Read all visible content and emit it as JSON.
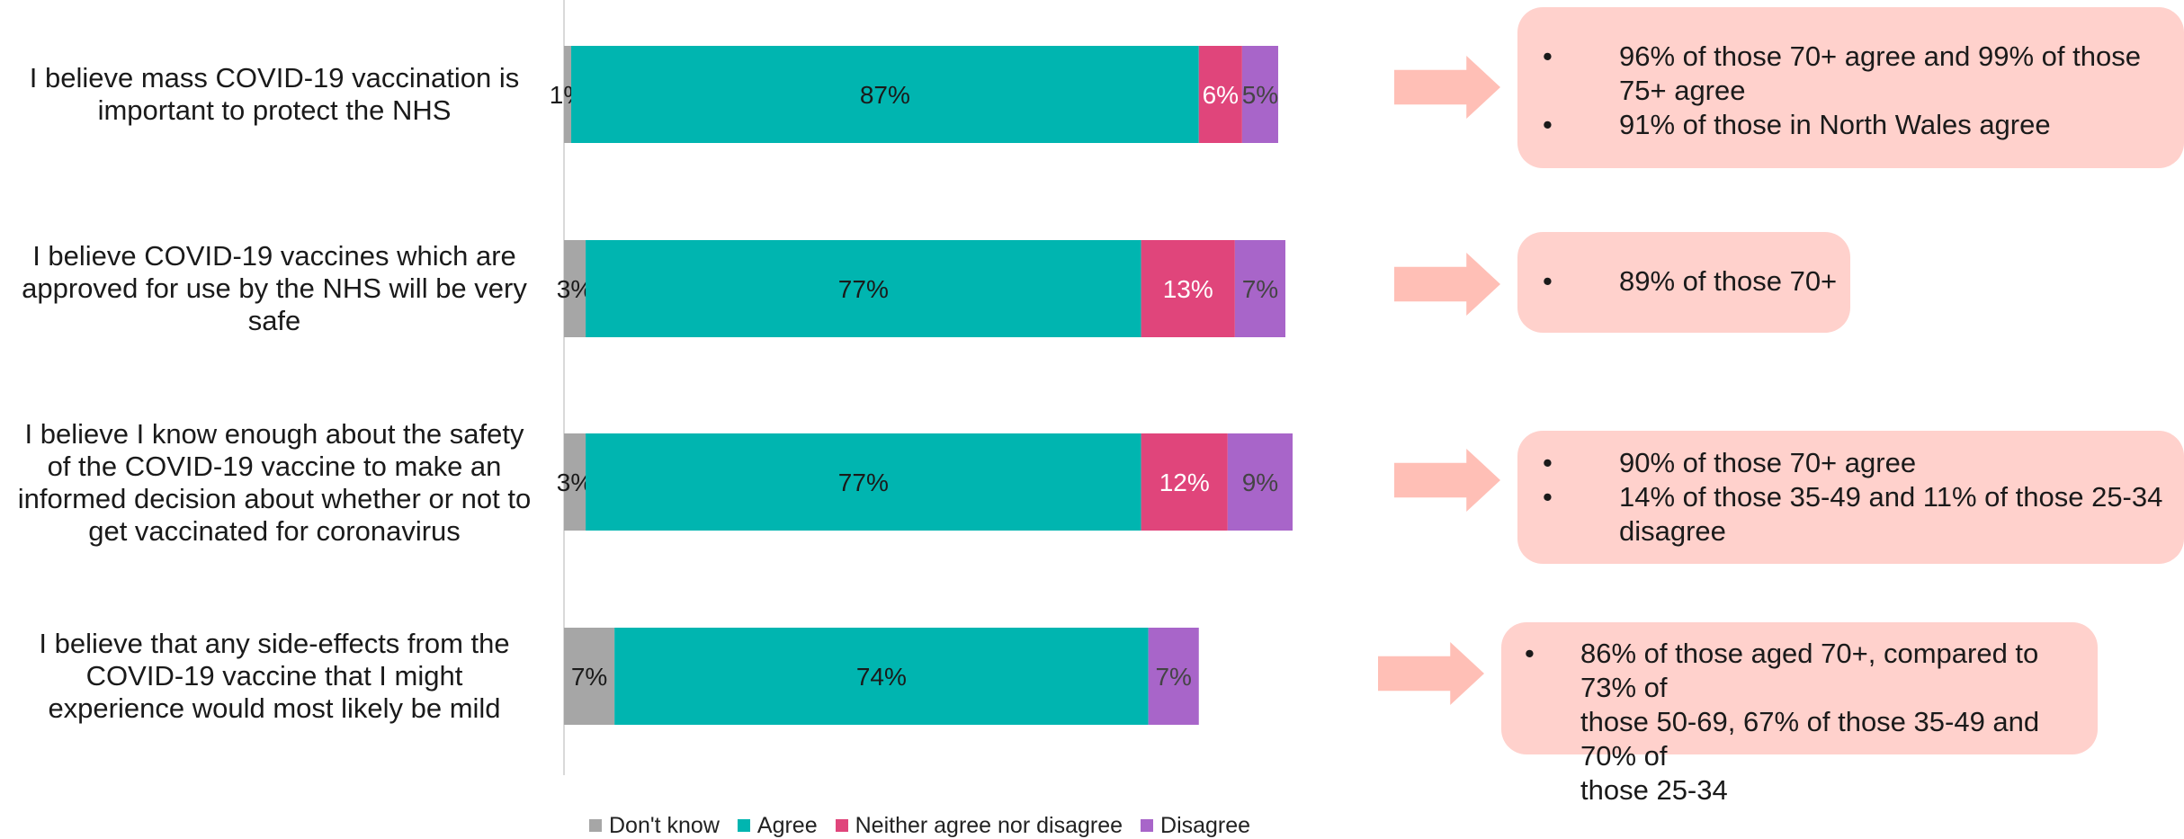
{
  "chart_data": {
    "type": "bar",
    "orientation": "horizontal",
    "stacked": true,
    "categories": [
      "I believe mass COVID-19 vaccination is important to protect the NHS",
      "I believe COVID-19 vaccines which are approved for use by the NHS will be very safe",
      "I believe I know enough about the safety of the COVID-19 vaccine to make an informed decision about whether or not to get vaccinated for coronavirus",
      "I believe that any side-effects from the COVID-19 vaccine that I might experience would most likely be mild"
    ],
    "series": [
      {
        "name": "Don't know",
        "color": "#A6A6A6",
        "values": [
          1,
          3,
          3,
          7
        ],
        "labels": [
          "1%",
          "3%",
          "3%",
          "7%"
        ]
      },
      {
        "name": "Agree",
        "color": "#00B5B0",
        "values": [
          87,
          77,
          77,
          74
        ],
        "labels": [
          "87%",
          "77%",
          "77%",
          "74%"
        ]
      },
      {
        "name": "Neither agree nor disagree",
        "color": "#E0457B",
        "values": [
          6,
          13,
          12,
          0
        ],
        "labels": [
          "6%",
          "13%",
          "12%",
          ""
        ]
      },
      {
        "name": "Disagree",
        "color": "#A865C9",
        "values": [
          5,
          7,
          9,
          7
        ],
        "labels": [
          "5%",
          "7%",
          "9%",
          "7%"
        ]
      }
    ],
    "legend_position": "bottom",
    "grid": false,
    "xlim": [
      0,
      100
    ]
  },
  "statements": [
    {
      "lines": [
        "I believe mass COVID-19 vaccination is",
        "important to protect the NHS"
      ]
    },
    {
      "lines": [
        "I believe COVID-19 vaccines which are",
        "approved for use by the NHS will be very",
        "safe"
      ]
    },
    {
      "lines": [
        "I believe I know enough about the safety",
        "of the COVID-19 vaccine to make an",
        "informed decision about whether or not to",
        "get vaccinated for coronavirus"
      ]
    },
    {
      "lines": [
        "I believe that any side-effects from the",
        "COVID-19 vaccine that I might",
        "experience would most likely be mild"
      ]
    }
  ],
  "callouts": [
    {
      "bullets": [
        [
          "96% of those 70+ agree and 99% of those",
          "75+ agree"
        ],
        [
          "91% of those in North Wales agree"
        ]
      ]
    },
    {
      "bullets": [
        [
          "89% of those 70+"
        ]
      ]
    },
    {
      "bullets": [
        [
          "90% of those 70+ agree"
        ],
        [
          "14% of those 35-49 and 11% of those 25-34",
          "disagree"
        ]
      ]
    },
    {
      "bullets": [
        [
          "86% of those aged 70+, compared to 73% of",
          "those 50-69, 67% of those 35-49 and 70% of",
          "those 25-34"
        ]
      ]
    }
  ],
  "bullet_symbol": "•",
  "colors": {
    "callout_bg": "#FFD1CC",
    "arrow": "#FFBFB6",
    "axis_line": "#D9D9D9"
  },
  "icons": {
    "arrow": "right-arrow-icon"
  }
}
